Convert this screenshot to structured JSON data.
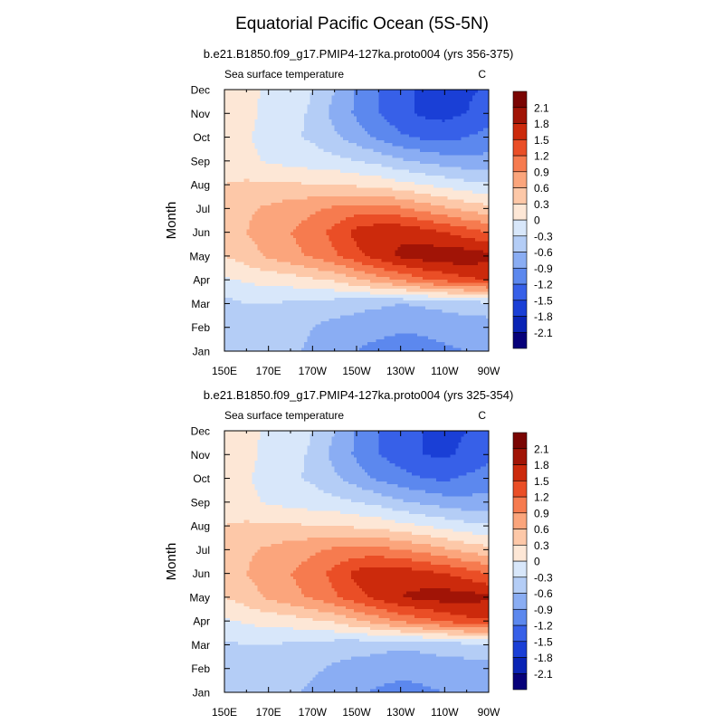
{
  "title": "Equatorial Pacific Ocean (5S-5N)",
  "chart_data": [
    {
      "type": "heatmap",
      "subtitle": "b.e21.B1850.f09_g17.PMIP4-127ka.proto004 (yrs 356-375)",
      "left_label": "Sea surface temperature",
      "right_label": "C",
      "ylabel": "Month",
      "xlabel": "",
      "x_tick_labels": [
        "150E",
        "170E",
        "170W",
        "150W",
        "130W",
        "110W",
        "90W"
      ],
      "x_tick_lons": [
        150,
        170,
        190,
        210,
        230,
        250,
        270
      ],
      "xlim": [
        150,
        270
      ],
      "y_tick_labels": [
        "Jan",
        "Feb",
        "Mar",
        "Apr",
        "May",
        "Jun",
        "Jul",
        "Aug",
        "Sep",
        "Oct",
        "Nov",
        "Dec"
      ],
      "ylim": [
        1,
        12
      ],
      "colorbar_levels": [
        -2.1,
        -1.8,
        -1.5,
        -1.2,
        -0.9,
        -0.6,
        -0.3,
        0,
        0.3,
        0.6,
        0.9,
        1.2,
        1.5,
        1.8,
        2.1
      ],
      "colorbar_labels": [
        "-2.1",
        "-1.8",
        "-1.5",
        "-1.2",
        "-0.9",
        "-0.6",
        "-0.3",
        "0",
        "0.3",
        "0.6",
        "0.9",
        "1.2",
        "1.5",
        "1.8",
        "2.1"
      ],
      "colorbar_colors": [
        "#07017a",
        "#0a24b5",
        "#1a3fd6",
        "#3760e8",
        "#5c88ee",
        "#8aadf3",
        "#b4cdf6",
        "#d8e7fa",
        "#fde7d6",
        "#fdc8a8",
        "#fba57c",
        "#f67b4f",
        "#ea4e26",
        "#cc2a0c",
        "#a11406",
        "#7a0503"
      ],
      "field": {
        "lons": [
          150,
          160,
          170,
          180,
          190,
          200,
          210,
          220,
          230,
          240,
          250,
          260,
          270
        ],
        "months": [
          1,
          2,
          3,
          4,
          5,
          6,
          7,
          8,
          9,
          10,
          11,
          12
        ],
        "values": [
          [
            -0.5,
            -0.4,
            -0.5,
            -0.55,
            -0.65,
            -0.8,
            -0.9,
            -1.0,
            -1.05,
            -1.0,
            -0.95,
            -0.9,
            -0.85
          ],
          [
            -0.45,
            -0.4,
            -0.45,
            -0.5,
            -0.6,
            -0.7,
            -0.75,
            -0.8,
            -0.85,
            -0.85,
            -0.8,
            -0.75,
            -0.75
          ],
          [
            -0.4,
            -0.3,
            -0.3,
            -0.35,
            -0.4,
            -0.45,
            -0.5,
            -0.55,
            -0.6,
            -0.55,
            -0.5,
            -0.45,
            -0.4
          ],
          [
            -0.05,
            0.05,
            0.1,
            0.15,
            0.25,
            0.35,
            0.55,
            0.75,
            0.95,
            1.15,
            1.3,
            1.45,
            1.5
          ],
          [
            0.3,
            0.45,
            0.65,
            0.8,
            0.95,
            1.15,
            1.4,
            1.65,
            1.85,
            1.95,
            2.0,
            2.0,
            1.9
          ],
          [
            0.45,
            0.6,
            0.75,
            0.9,
            1.05,
            1.3,
            1.6,
            1.75,
            1.75,
            1.65,
            1.5,
            1.35,
            1.2
          ],
          [
            0.45,
            0.55,
            0.65,
            0.75,
            0.85,
            0.95,
            1.05,
            1.05,
            0.95,
            0.8,
            0.65,
            0.5,
            0.4
          ],
          [
            0.3,
            0.35,
            0.35,
            0.35,
            0.3,
            0.3,
            0.25,
            0.2,
            0.1,
            0.0,
            -0.1,
            -0.2,
            -0.25
          ],
          [
            0.2,
            0.1,
            -0.05,
            -0.1,
            -0.15,
            -0.2,
            -0.3,
            -0.4,
            -0.55,
            -0.65,
            -0.75,
            -0.8,
            -0.8
          ],
          [
            0.2,
            0.05,
            -0.15,
            -0.25,
            -0.35,
            -0.55,
            -0.75,
            -0.95,
            -1.15,
            -1.25,
            -1.3,
            -1.2,
            -1.1
          ],
          [
            0.25,
            0.1,
            -0.1,
            -0.2,
            -0.35,
            -0.7,
            -0.95,
            -1.2,
            -1.4,
            -1.55,
            -1.6,
            -1.5,
            -1.35
          ],
          [
            0.3,
            0.15,
            -0.1,
            -0.15,
            -0.3,
            -0.6,
            -0.95,
            -1.2,
            -1.4,
            -1.55,
            -1.6,
            -1.55,
            -1.45
          ]
        ]
      }
    },
    {
      "type": "heatmap",
      "subtitle": "b.e21.B1850.f09_g17.PMIP4-127ka.proto004 (yrs 325-354)",
      "left_label": "Sea surface temperature",
      "right_label": "C",
      "ylabel": "Month",
      "xlabel": "",
      "x_tick_labels": [
        "150E",
        "170E",
        "170W",
        "150W",
        "130W",
        "110W",
        "90W"
      ],
      "x_tick_lons": [
        150,
        170,
        190,
        210,
        230,
        250,
        270
      ],
      "xlim": [
        150,
        270
      ],
      "y_tick_labels": [
        "Jan",
        "Feb",
        "Mar",
        "Apr",
        "May",
        "Jun",
        "Jul",
        "Aug",
        "Sep",
        "Oct",
        "Nov",
        "Dec"
      ],
      "ylim": [
        1,
        12
      ],
      "colorbar_levels": [
        -2.1,
        -1.8,
        -1.5,
        -1.2,
        -0.9,
        -0.6,
        -0.3,
        0,
        0.3,
        0.6,
        0.9,
        1.2,
        1.5,
        1.8,
        2.1
      ],
      "colorbar_labels": [
        "-2.1",
        "-1.8",
        "-1.5",
        "-1.2",
        "-0.9",
        "-0.6",
        "-0.3",
        "0",
        "0.3",
        "0.6",
        "0.9",
        "1.2",
        "1.5",
        "1.8",
        "2.1"
      ],
      "colorbar_colors": [
        "#07017a",
        "#0a24b5",
        "#1a3fd6",
        "#3760e8",
        "#5c88ee",
        "#8aadf3",
        "#b4cdf6",
        "#d8e7fa",
        "#fde7d6",
        "#fdc8a8",
        "#fba57c",
        "#f67b4f",
        "#ea4e26",
        "#cc2a0c",
        "#a11406",
        "#7a0503"
      ],
      "field": {
        "lons": [
          150,
          160,
          170,
          180,
          190,
          200,
          210,
          220,
          230,
          240,
          250,
          260,
          270
        ],
        "months": [
          1,
          2,
          3,
          4,
          5,
          6,
          7,
          8,
          9,
          10,
          11,
          12
        ],
        "values": [
          [
            -0.45,
            -0.4,
            -0.45,
            -0.55,
            -0.65,
            -0.75,
            -0.85,
            -0.95,
            -1.0,
            -0.95,
            -0.9,
            -0.85,
            -0.8
          ],
          [
            -0.4,
            -0.35,
            -0.4,
            -0.5,
            -0.55,
            -0.65,
            -0.7,
            -0.75,
            -0.8,
            -0.8,
            -0.75,
            -0.75,
            -0.7
          ],
          [
            -0.35,
            -0.3,
            -0.3,
            -0.35,
            -0.4,
            -0.45,
            -0.5,
            -0.5,
            -0.55,
            -0.5,
            -0.45,
            -0.4,
            -0.4
          ],
          [
            -0.05,
            0.05,
            0.1,
            0.15,
            0.25,
            0.35,
            0.55,
            0.75,
            0.95,
            1.1,
            1.25,
            1.4,
            1.45
          ],
          [
            0.3,
            0.45,
            0.65,
            0.8,
            0.95,
            1.15,
            1.4,
            1.6,
            1.8,
            1.9,
            1.95,
            1.95,
            1.85
          ],
          [
            0.45,
            0.6,
            0.75,
            0.9,
            1.05,
            1.3,
            1.6,
            1.7,
            1.7,
            1.6,
            1.5,
            1.35,
            1.2
          ],
          [
            0.45,
            0.55,
            0.65,
            0.75,
            0.85,
            0.95,
            1.0,
            1.0,
            0.9,
            0.8,
            0.65,
            0.5,
            0.4
          ],
          [
            0.3,
            0.35,
            0.35,
            0.35,
            0.3,
            0.3,
            0.25,
            0.2,
            0.1,
            0.0,
            -0.1,
            -0.2,
            -0.25
          ],
          [
            0.2,
            0.1,
            -0.05,
            -0.1,
            -0.15,
            -0.2,
            -0.3,
            -0.4,
            -0.55,
            -0.65,
            -0.75,
            -0.8,
            -0.8
          ],
          [
            0.2,
            0.05,
            -0.15,
            -0.25,
            -0.35,
            -0.55,
            -0.75,
            -0.95,
            -1.1,
            -1.2,
            -1.25,
            -1.15,
            -1.05
          ],
          [
            0.25,
            0.1,
            -0.1,
            -0.2,
            -0.35,
            -0.7,
            -0.95,
            -1.2,
            -1.35,
            -1.5,
            -1.55,
            -1.45,
            -1.3
          ],
          [
            0.3,
            0.15,
            -0.1,
            -0.15,
            -0.3,
            -0.6,
            -0.95,
            -1.2,
            -1.35,
            -1.5,
            -1.55,
            -1.5,
            -1.4
          ]
        ]
      }
    }
  ]
}
